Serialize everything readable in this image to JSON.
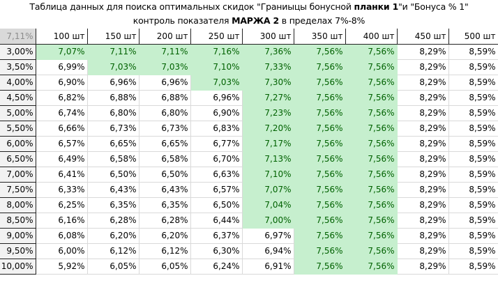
{
  "title": {
    "line1_pre": "Таблица данных для поиска оптимальных скидок \"Граниыцы бонусной ",
    "line1_bold": "планки 1",
    "line1_post": "\"и \"Бонуса % 1\"",
    "line2_pre": "контроль показателя ",
    "line2_bold": "МАРЖА 2",
    "line2_post": " в пределах 7%-8%"
  },
  "colors": {
    "highlight_fill": "#c6efce",
    "highlight_text": "#006100",
    "corner_fill": "#d9d9d9",
    "rowhead_fill": "#f2f2f2"
  },
  "table": {
    "corner": "7,11%",
    "columns": [
      "100 шт",
      "150 шт",
      "200 шт",
      "250 шт",
      "300 шт",
      "350 шт",
      "400 шт",
      "450 шт",
      "500 шт"
    ],
    "rows": [
      {
        "label": "3,00%",
        "values": [
          "7,07%",
          "7,11%",
          "7,11%",
          "7,16%",
          "7,36%",
          "7,56%",
          "7,56%",
          "8,29%",
          "8,59%"
        ],
        "hl": [
          1,
          1,
          1,
          1,
          1,
          1,
          1,
          0,
          0
        ]
      },
      {
        "label": "3,50%",
        "values": [
          "6,99%",
          "7,03%",
          "7,03%",
          "7,10%",
          "7,33%",
          "7,56%",
          "7,56%",
          "8,29%",
          "8,59%"
        ],
        "hl": [
          0,
          1,
          1,
          1,
          1,
          1,
          1,
          0,
          0
        ]
      },
      {
        "label": "4,00%",
        "values": [
          "6,90%",
          "6,96%",
          "6,96%",
          "7,03%",
          "7,30%",
          "7,56%",
          "7,56%",
          "8,29%",
          "8,59%"
        ],
        "hl": [
          0,
          0,
          0,
          1,
          1,
          1,
          1,
          0,
          0
        ]
      },
      {
        "label": "4,50%",
        "values": [
          "6,82%",
          "6,88%",
          "6,88%",
          "6,96%",
          "7,27%",
          "7,56%",
          "7,56%",
          "8,29%",
          "8,59%"
        ],
        "hl": [
          0,
          0,
          0,
          0,
          1,
          1,
          1,
          0,
          0
        ]
      },
      {
        "label": "5,00%",
        "values": [
          "6,74%",
          "6,80%",
          "6,80%",
          "6,90%",
          "7,23%",
          "7,56%",
          "7,56%",
          "8,29%",
          "8,59%"
        ],
        "hl": [
          0,
          0,
          0,
          0,
          1,
          1,
          1,
          0,
          0
        ]
      },
      {
        "label": "5,50%",
        "values": [
          "6,66%",
          "6,73%",
          "6,73%",
          "6,83%",
          "7,20%",
          "7,56%",
          "7,56%",
          "8,29%",
          "8,59%"
        ],
        "hl": [
          0,
          0,
          0,
          0,
          1,
          1,
          1,
          0,
          0
        ]
      },
      {
        "label": "6,00%",
        "values": [
          "6,57%",
          "6,65%",
          "6,65%",
          "6,77%",
          "7,17%",
          "7,56%",
          "7,56%",
          "8,29%",
          "8,59%"
        ],
        "hl": [
          0,
          0,
          0,
          0,
          1,
          1,
          1,
          0,
          0
        ]
      },
      {
        "label": "6,50%",
        "values": [
          "6,49%",
          "6,58%",
          "6,58%",
          "6,70%",
          "7,13%",
          "7,56%",
          "7,56%",
          "8,29%",
          "8,59%"
        ],
        "hl": [
          0,
          0,
          0,
          0,
          1,
          1,
          1,
          0,
          0
        ]
      },
      {
        "label": "7,00%",
        "values": [
          "6,41%",
          "6,50%",
          "6,50%",
          "6,63%",
          "7,10%",
          "7,56%",
          "7,56%",
          "8,29%",
          "8,59%"
        ],
        "hl": [
          0,
          0,
          0,
          0,
          1,
          1,
          1,
          0,
          0
        ]
      },
      {
        "label": "7,50%",
        "values": [
          "6,33%",
          "6,43%",
          "6,43%",
          "6,57%",
          "7,07%",
          "7,56%",
          "7,56%",
          "8,29%",
          "8,59%"
        ],
        "hl": [
          0,
          0,
          0,
          0,
          1,
          1,
          1,
          0,
          0
        ]
      },
      {
        "label": "8,00%",
        "values": [
          "6,25%",
          "6,35%",
          "6,35%",
          "6,50%",
          "7,04%",
          "7,56%",
          "7,56%",
          "8,29%",
          "8,59%"
        ],
        "hl": [
          0,
          0,
          0,
          0,
          1,
          1,
          1,
          0,
          0
        ]
      },
      {
        "label": "8,50%",
        "values": [
          "6,16%",
          "6,28%",
          "6,28%",
          "6,44%",
          "7,00%",
          "7,56%",
          "7,56%",
          "8,29%",
          "8,59%"
        ],
        "hl": [
          0,
          0,
          0,
          0,
          1,
          1,
          1,
          0,
          0
        ]
      },
      {
        "label": "9,00%",
        "values": [
          "6,08%",
          "6,20%",
          "6,20%",
          "6,37%",
          "6,97%",
          "7,56%",
          "7,56%",
          "8,29%",
          "8,59%"
        ],
        "hl": [
          0,
          0,
          0,
          0,
          0,
          1,
          1,
          0,
          0
        ]
      },
      {
        "label": "9,50%",
        "values": [
          "6,00%",
          "6,12%",
          "6,12%",
          "6,30%",
          "6,94%",
          "7,56%",
          "7,56%",
          "8,29%",
          "8,59%"
        ],
        "hl": [
          0,
          0,
          0,
          0,
          0,
          1,
          1,
          0,
          0
        ]
      },
      {
        "label": "10,00%",
        "values": [
          "5,92%",
          "6,05%",
          "6,05%",
          "6,24%",
          "6,91%",
          "7,56%",
          "7,56%",
          "8,29%",
          "8,59%"
        ],
        "hl": [
          0,
          0,
          0,
          0,
          0,
          1,
          1,
          0,
          0
        ]
      }
    ]
  }
}
